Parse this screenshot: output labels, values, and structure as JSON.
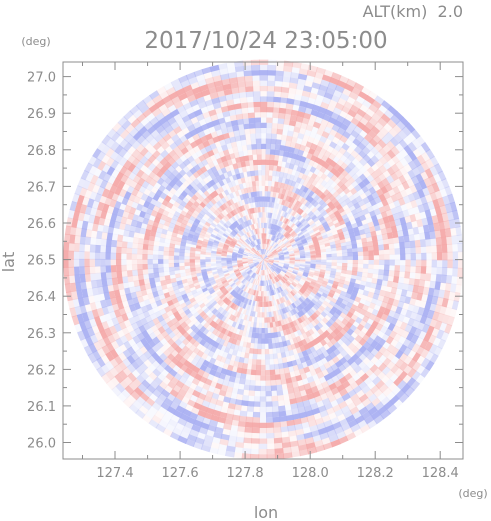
{
  "chart_data": {
    "type": "heatmap",
    "plot_type": "polar radar scan (range rings x azimuth beams), diverging red/blue",
    "title": "2017/10/24 23:05:00",
    "altitude_label": "ALT(km)  2.0",
    "xlabel": "lon",
    "ylabel": "lat",
    "x_unit": "(deg)",
    "y_unit": "(deg)",
    "xlim": [
      127.24,
      128.47
    ],
    "ylim": [
      25.955,
      27.04
    ],
    "x_ticks": [
      127.4,
      127.6,
      127.8,
      128.0,
      128.2,
      128.4
    ],
    "x_tick_labels": [
      "127.4",
      "127.6",
      "127.8",
      "128.0",
      "128.2",
      "128.4"
    ],
    "y_ticks": [
      26.0,
      26.1,
      26.2,
      26.3,
      26.4,
      26.5,
      26.6,
      26.7,
      26.8,
      26.9,
      27.0
    ],
    "y_tick_labels": [
      "26.0",
      "26.1",
      "26.2",
      "26.3",
      "26.4",
      "26.5",
      "26.6",
      "26.7",
      "26.8",
      "26.9",
      "27.0"
    ],
    "center": {
      "lon": 127.856,
      "lat": 26.5
    },
    "radius_lon_deg": 0.615,
    "colors": {
      "positive": "#f4a9a9",
      "negative": "#aab0f2",
      "axis": "#8c8c8c"
    },
    "grid": false
  }
}
